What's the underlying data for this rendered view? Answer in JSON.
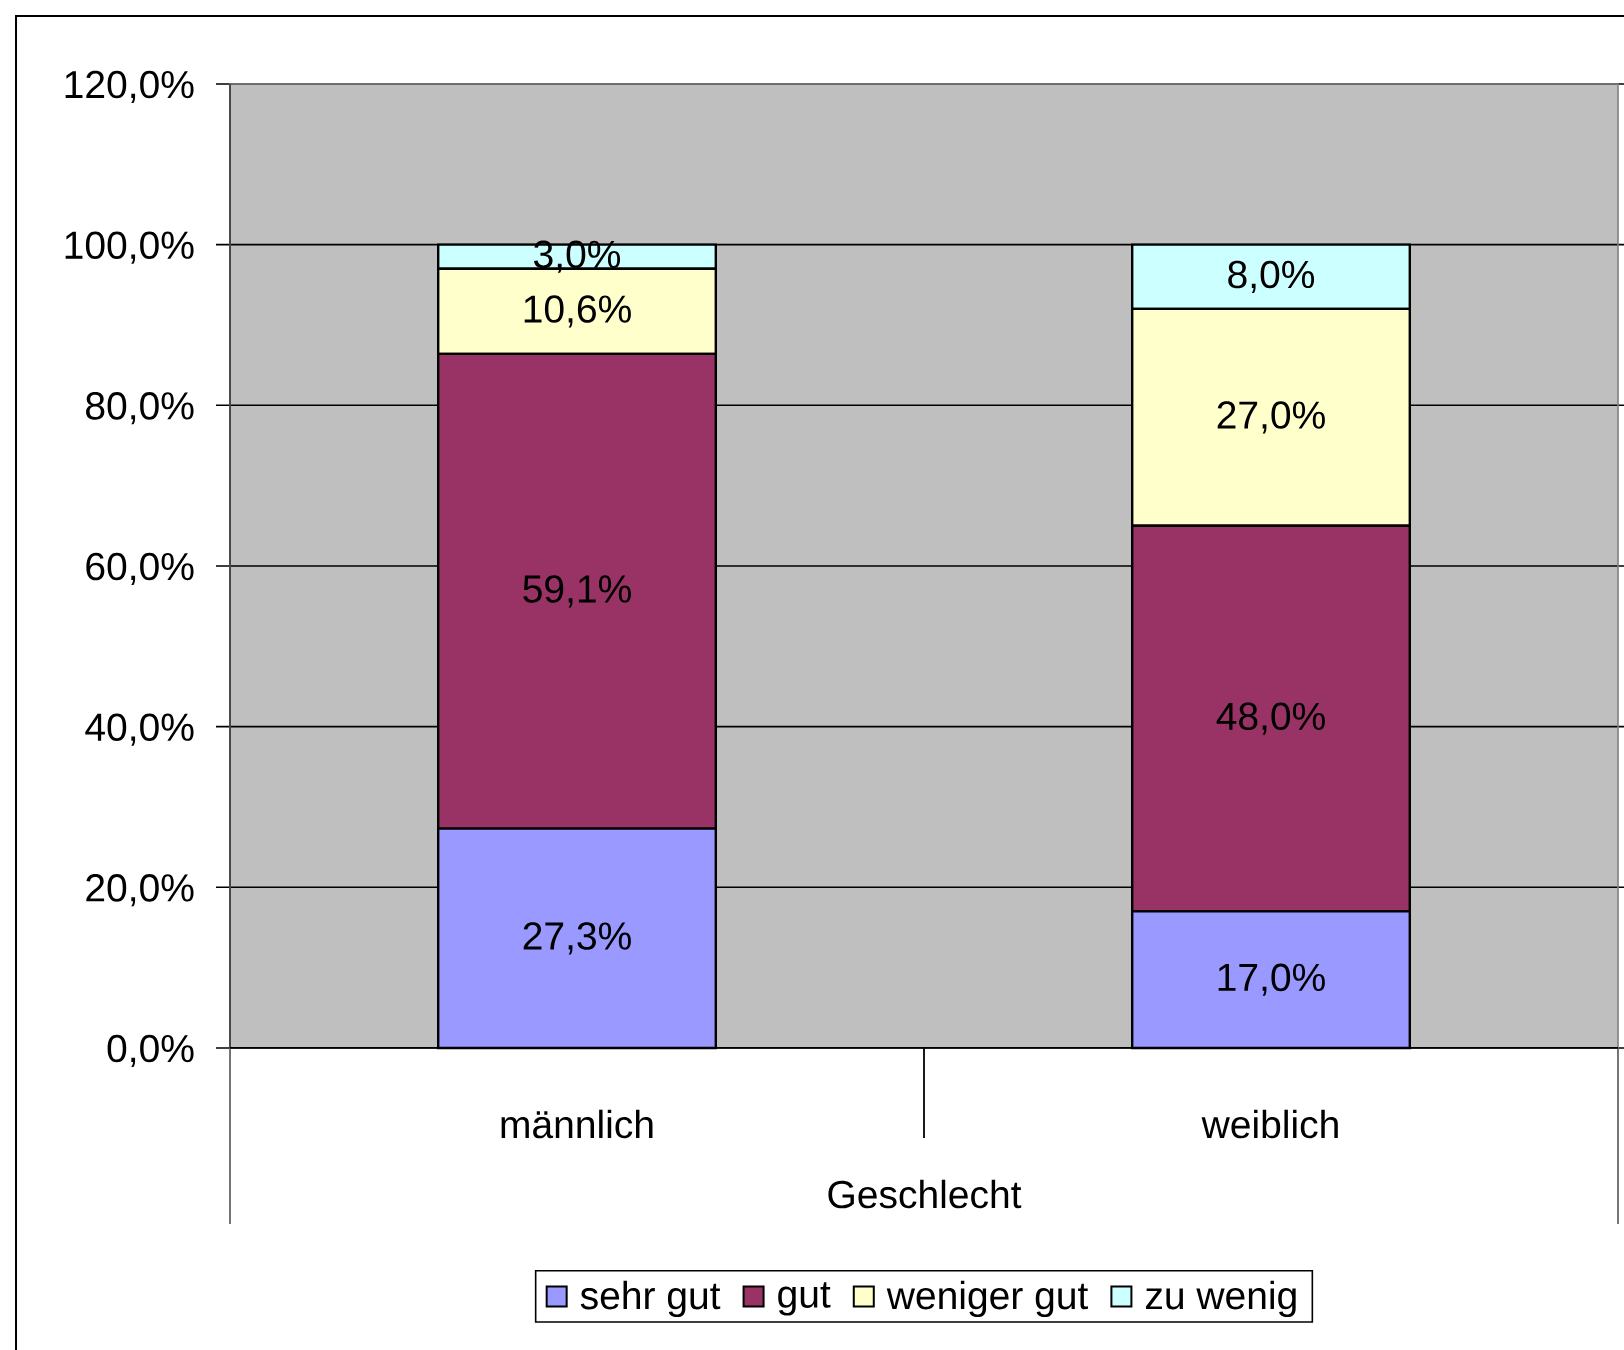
{
  "chart_data": {
    "type": "bar",
    "stacked": true,
    "xlabel": "Geschlecht",
    "categories": [
      "männlich",
      "weiblich"
    ],
    "series": [
      {
        "name": "sehr gut",
        "color": "#9999ff",
        "values": [
          27.3,
          17.0
        ],
        "value_labels": [
          "27,3%",
          "17,0%"
        ]
      },
      {
        "name": "gut",
        "color": "#993366",
        "values": [
          59.1,
          48.0
        ],
        "value_labels": [
          "59,1%",
          "48,0%"
        ]
      },
      {
        "name": "weniger gut",
        "color": "#ffffcc",
        "values": [
          10.6,
          27.0
        ],
        "value_labels": [
          "10,6%",
          "27,0%"
        ]
      },
      {
        "name": "zu wenig",
        "color": "#ccffff",
        "values": [
          3.0,
          8.0
        ],
        "value_labels": [
          "3,0%",
          "8,0%"
        ]
      }
    ],
    "ylim": [
      0,
      120
    ],
    "yticks": [
      {
        "value": 0,
        "label": "0,0%"
      },
      {
        "value": 20,
        "label": "20,0%"
      },
      {
        "value": 40,
        "label": "40,0%"
      },
      {
        "value": 60,
        "label": "60,0%"
      },
      {
        "value": 80,
        "label": "80,0%"
      },
      {
        "value": 100,
        "label": "100,0%"
      },
      {
        "value": 120,
        "label": "120,0%"
      }
    ],
    "grid": "y",
    "legend": "bottom"
  }
}
